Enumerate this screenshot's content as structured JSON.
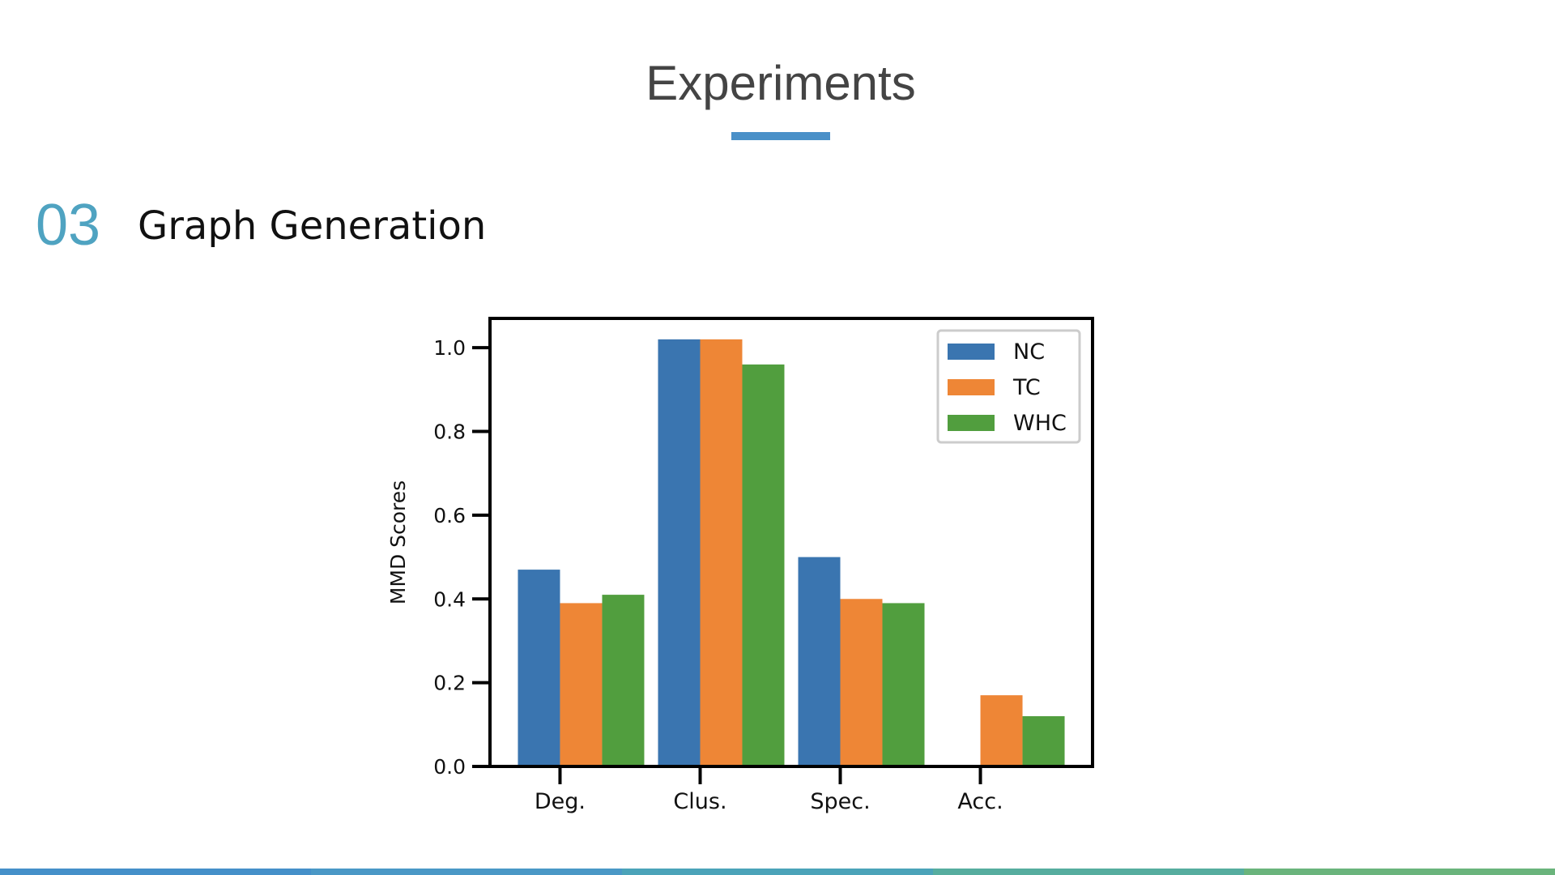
{
  "slide": {
    "title": "Experiments",
    "section_number": "03",
    "section_title": "Graph Generation"
  },
  "colors": {
    "title": "#444444",
    "accent": "#4a90c8",
    "section_number": "#4fa3c1",
    "footer": [
      "#4590c9",
      "#4a98c6",
      "#4ba3b9",
      "#56ad9f",
      "#6ab47c"
    ]
  },
  "chart_data": {
    "type": "bar",
    "categories": [
      "Deg.",
      "Clus.",
      "Spec.",
      "Acc."
    ],
    "series": [
      {
        "name": "NC",
        "color": "#3a75b0",
        "values": [
          0.47,
          1.02,
          0.5,
          null
        ]
      },
      {
        "name": "TC",
        "color": "#ee8636",
        "values": [
          0.39,
          1.02,
          0.4,
          0.17
        ]
      },
      {
        "name": "WHC",
        "color": "#519e3e",
        "values": [
          0.41,
          0.96,
          0.39,
          0.12
        ]
      }
    ],
    "title": "",
    "xlabel": "",
    "ylabel": "MMD Scores",
    "ylim": [
      0,
      1.07
    ],
    "yticks": [
      0.0,
      0.2,
      0.4,
      0.6,
      0.8,
      1.0
    ],
    "ytick_labels": [
      "0.0",
      "0.2",
      "0.4",
      "0.6",
      "0.8",
      "1.0"
    ],
    "grid": false,
    "legend_position": "top-right"
  }
}
